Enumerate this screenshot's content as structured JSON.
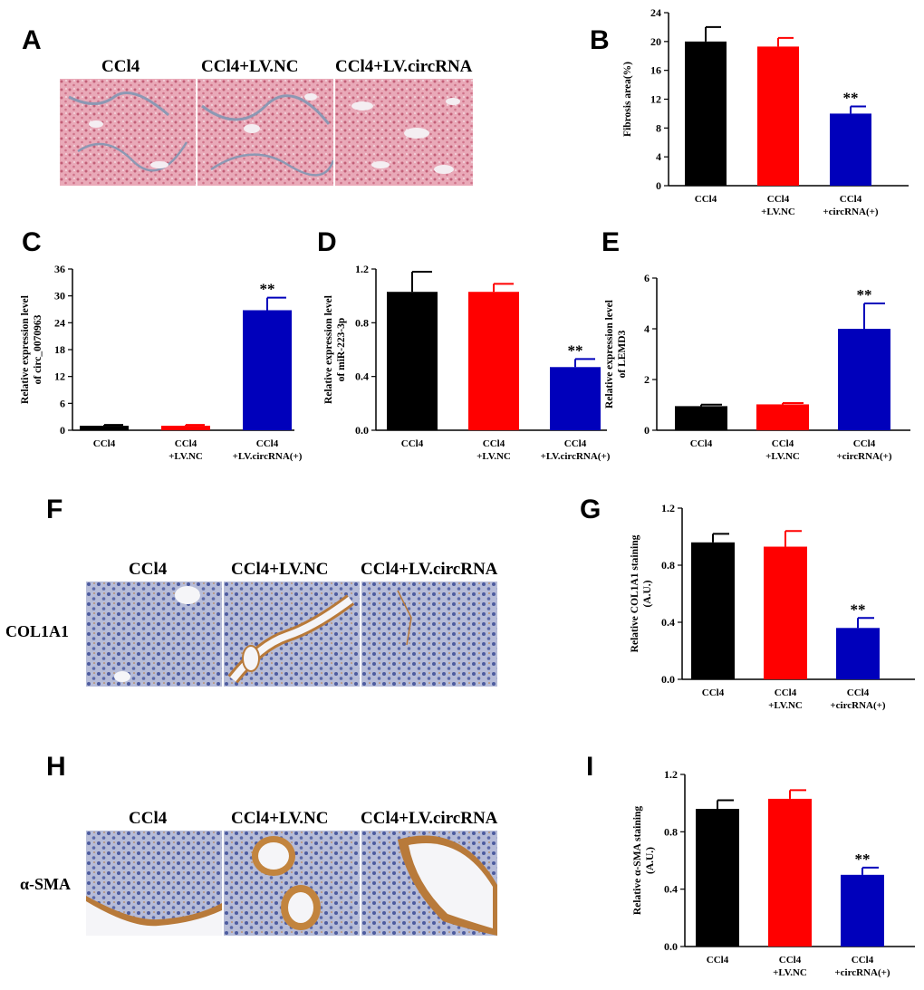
{
  "colors": {
    "bar1": "#000000",
    "bar2": "#ff0000",
    "bar3": "#0000bb",
    "trichrome_bg": "#e7a7b6",
    "trichrome_fiber": "#8c98b3",
    "ihc_bg": "#a9b2d2",
    "ihc_nuclei": "#4d5c9f",
    "ihc_brown": "#b87a3a"
  },
  "panels": {
    "A": {
      "letter": "A",
      "labels": [
        "CCl4",
        "CCl4+LV.NC",
        "CCl4+LV.circRNA"
      ]
    },
    "B": {
      "letter": "B"
    },
    "C": {
      "letter": "C"
    },
    "D": {
      "letter": "D"
    },
    "E": {
      "letter": "E"
    },
    "F": {
      "letter": "F",
      "labels": [
        "CCl4",
        "CCl4+LV.NC",
        "CCl4+LV.circRNA"
      ],
      "row_label": "COL1A1"
    },
    "G": {
      "letter": "G"
    },
    "H": {
      "letter": "H",
      "labels": [
        "CCl4",
        "CCl4+LV.NC",
        "CCl4+LV.circRNA"
      ],
      "row_label": "α-SMA"
    },
    "I": {
      "letter": "I"
    }
  },
  "chart_data": [
    {
      "id": "B",
      "type": "bar",
      "ylabel": "Fibrosis area(%)",
      "ylim": [
        0,
        24
      ],
      "yticks": [
        "0",
        "4",
        "8",
        "12",
        "16",
        "20",
        "24"
      ],
      "categories": [
        [
          "CCl4"
        ],
        [
          "CCl4",
          "+LV.NC"
        ],
        [
          "CCl4",
          "+circRNA(+)"
        ]
      ],
      "values": [
        20.0,
        19.3,
        10.0
      ],
      "errors": [
        2.0,
        1.2,
        1.0
      ],
      "annotations": [
        "",
        "",
        "**"
      ]
    },
    {
      "id": "C",
      "type": "bar",
      "ylabel": [
        "Relative expression level",
        "of circ_0070963"
      ],
      "ylim": [
        0,
        36
      ],
      "yticks": [
        "0",
        "6",
        "12",
        "18",
        "24",
        "30",
        "36"
      ],
      "categories": [
        [
          "CCl4"
        ],
        [
          "CCl4",
          "+LV.NC"
        ],
        [
          "CCl4",
          "+LV.circRNA(+)"
        ]
      ],
      "values": [
        1.0,
        1.0,
        26.8
      ],
      "errors": [
        0.2,
        0.2,
        2.8
      ],
      "annotations": [
        "",
        "",
        "**"
      ]
    },
    {
      "id": "D",
      "type": "bar",
      "ylabel": [
        "Relative expression level",
        "of miR-223-3p"
      ],
      "ylim": [
        0,
        1.2
      ],
      "yticks": [
        "0.0",
        "0.4",
        "0.8",
        "1.2"
      ],
      "categories": [
        [
          "CCl4"
        ],
        [
          "CCl4",
          "+LV.NC"
        ],
        [
          "CCl4",
          "+LV.circRNA(+)"
        ]
      ],
      "values": [
        1.03,
        1.03,
        0.47
      ],
      "errors": [
        0.15,
        0.06,
        0.06
      ],
      "annotations": [
        "",
        "",
        "**"
      ]
    },
    {
      "id": "E",
      "type": "bar",
      "ylabel": [
        "Relative expression level",
        "of LEMD3"
      ],
      "ylim": [
        0,
        6
      ],
      "yticks": [
        "0",
        "2",
        "4",
        "6"
      ],
      "categories": [
        [
          "CCl4"
        ],
        [
          "CCl4",
          "+LV.NC"
        ],
        [
          "CCl4",
          "+circRNA(+)"
        ]
      ],
      "values": [
        0.95,
        1.02,
        4.0
      ],
      "errors": [
        0.06,
        0.05,
        1.0
      ],
      "annotations": [
        "",
        "",
        "**"
      ]
    },
    {
      "id": "G",
      "type": "bar",
      "ylabel": [
        "Relative COL1A1 staining",
        "(A.U.)"
      ],
      "ylim": [
        0,
        1.2
      ],
      "yticks": [
        "0.0",
        "0.4",
        "0.8",
        "1.2"
      ],
      "categories": [
        [
          "CCl4"
        ],
        [
          "CCl4",
          "+LV.NC"
        ],
        [
          "CCl4",
          "+circRNA(+)"
        ]
      ],
      "values": [
        0.96,
        0.93,
        0.36
      ],
      "errors": [
        0.06,
        0.11,
        0.07
      ],
      "annotations": [
        "",
        "",
        "**"
      ]
    },
    {
      "id": "I",
      "type": "bar",
      "ylabel": [
        "Relative α-SMA staining",
        "(A.U.)"
      ],
      "ylim": [
        0,
        1.2
      ],
      "yticks": [
        "0.0",
        "0.4",
        "0.8",
        "1.2"
      ],
      "categories": [
        [
          "CCl4"
        ],
        [
          "CCl4",
          "+LV.NC"
        ],
        [
          "CCl4",
          "+circRNA(+)"
        ]
      ],
      "values": [
        0.96,
        1.03,
        0.5
      ],
      "errors": [
        0.06,
        0.06,
        0.05
      ],
      "annotations": [
        "",
        "",
        "**"
      ]
    }
  ]
}
